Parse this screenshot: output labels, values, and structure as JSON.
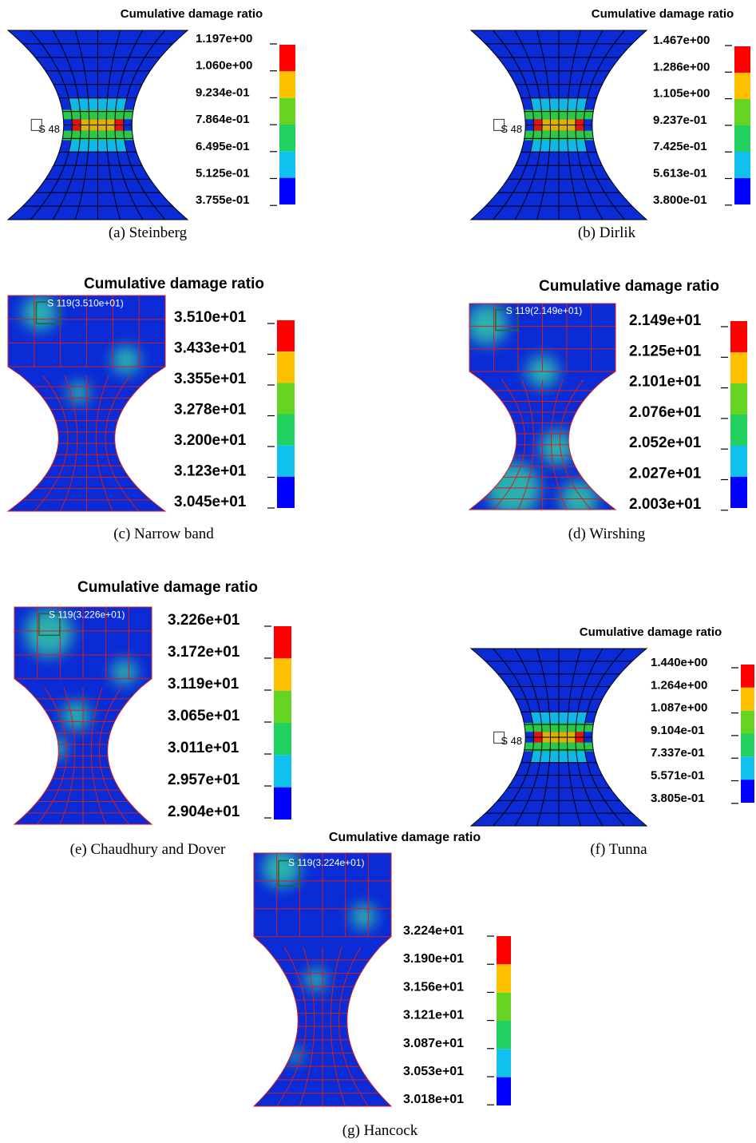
{
  "panels": [
    {
      "title": "Cumulative damage ratio",
      "legend": [
        "1.197e+00",
        "1.060e+00",
        "9.234e-01",
        "7.864e-01",
        "6.495e-01",
        "5.125e-01",
        "3.755e-01"
      ],
      "node_label": "S 48",
      "caption": "(a) Steinberg"
    },
    {
      "title": "Cumulative damage ratio",
      "legend": [
        "1.467e+00",
        "1.286e+00",
        "1.105e+00",
        "9.237e-01",
        "7.425e-01",
        "5.613e-01",
        "3.800e-01"
      ],
      "node_label": "S 48",
      "caption": "(b) Dirlik"
    },
    {
      "title": "Cumulative damage ratio",
      "legend": [
        "3.510e+01",
        "3.433e+01",
        "3.355e+01",
        "3.278e+01",
        "3.200e+01",
        "3.123e+01",
        "3.045e+01"
      ],
      "node_label": "S 119(3.510e+01)",
      "caption": "(c) Narrow band"
    },
    {
      "title": "Cumulative damage ratio",
      "legend": [
        "2.149e+01",
        "2.125e+01",
        "2.101e+01",
        "2.076e+01",
        "2.052e+01",
        "2.027e+01",
        "2.003e+01"
      ],
      "node_label": "S 119(2.149e+01)",
      "caption": "(d) Wirshing"
    },
    {
      "title": "Cumulative damage ratio",
      "legend": [
        "3.226e+01",
        "3.172e+01",
        "3.119e+01",
        "3.065e+01",
        "3.011e+01",
        "2.957e+01",
        "2.904e+01"
      ],
      "node_label": "S 119(3.226e+01)",
      "caption": "(e) Chaudhury and Dover"
    },
    {
      "title": "Cumulative damage ratio",
      "legend": [
        "1.440e+00",
        "1.264e+00",
        "1.087e+00",
        "9.104e-01",
        "7.337e-01",
        "5.571e-01",
        "3.805e-01"
      ],
      "node_label": "S 48",
      "caption": "(f) Tunna"
    },
    {
      "title": "Cumulative damage ratio",
      "legend": [
        "3.224e+01",
        "3.190e+01",
        "3.156e+01",
        "3.121e+01",
        "3.087e+01",
        "3.053e+01",
        "3.018e+01"
      ],
      "node_label": "S 119(3.224e+01)",
      "caption": "(g) Hancock"
    }
  ]
}
